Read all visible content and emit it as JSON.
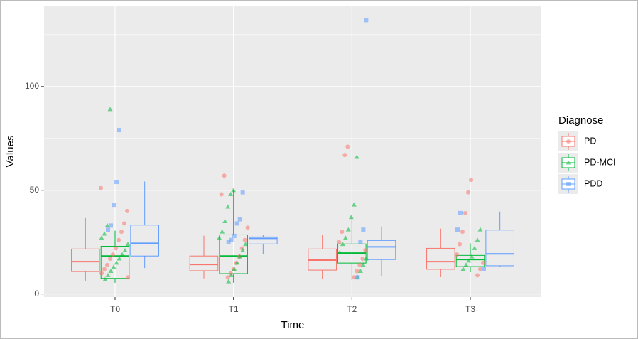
{
  "chart_data": {
    "type": "boxplot",
    "x_label": "Time",
    "y_label": "Values",
    "legend_title": "Diagnose",
    "categories": [
      "T0",
      "T1",
      "T2",
      "T3"
    ],
    "ylim": [
      -1.5,
      139
    ],
    "yticks": [
      0,
      50,
      100
    ],
    "minor_yticks": [
      25,
      75,
      125
    ],
    "grid": true,
    "legend": "right",
    "series": [
      {
        "name": "PD",
        "color": "#F8766D",
        "shape": "circle",
        "boxes": [
          {
            "whisker_low": 6.4,
            "q1": 10.8,
            "median": 15.6,
            "q3": 21.7,
            "whisker_high": 36.6
          },
          {
            "whisker_low": 7.5,
            "q1": 11.2,
            "median": 14.2,
            "q3": 18.3,
            "whisker_high": 28.1
          },
          {
            "whisker_low": 7.1,
            "q1": 11.5,
            "median": 16.3,
            "q3": 21.7,
            "whisker_high": 28.5
          },
          {
            "whisker_low": 8.1,
            "q1": 11.9,
            "median": 15.6,
            "q3": 22,
            "whisker_high": 31.5
          }
        ],
        "points": [
          [
            51,
            40,
            34,
            30,
            26,
            22,
            19,
            17,
            14,
            12,
            10,
            8
          ],
          [
            57,
            48,
            32,
            26,
            22,
            18,
            15,
            12,
            10,
            8
          ],
          [
            71,
            67,
            30,
            25,
            21,
            17,
            14,
            11,
            8
          ],
          [
            55,
            49,
            39,
            30,
            24,
            19,
            15,
            12,
            9
          ]
        ]
      },
      {
        "name": "PD-MCI",
        "color": "#00BA38",
        "shape": "triangle",
        "boxes": [
          {
            "whisker_low": 5.4,
            "q1": 7.5,
            "median": 18.3,
            "q3": 23,
            "whisker_high": 30.5
          },
          {
            "whisker_low": 5.4,
            "q1": 9.8,
            "median": 18.3,
            "q3": 28.5,
            "whisker_high": 50.2
          },
          {
            "whisker_low": 6.8,
            "q1": 14.9,
            "median": 19.7,
            "q3": 24.1,
            "whisker_high": 37.3
          },
          {
            "whisker_low": 10.5,
            "q1": 13.2,
            "median": 16.6,
            "q3": 18.6,
            "whisker_high": 24.4
          }
        ],
        "points": [
          [
            89,
            33,
            29,
            27,
            24,
            21,
            19,
            17,
            15,
            13,
            11,
            9,
            7
          ],
          [
            50,
            48,
            42,
            35,
            30,
            27,
            24,
            21,
            18,
            15,
            12,
            9,
            6
          ],
          [
            66,
            43,
            37,
            31,
            27,
            24,
            20,
            17,
            14,
            11,
            8
          ],
          [
            31,
            26,
            22,
            18,
            16,
            14,
            12
          ]
        ]
      },
      {
        "name": "PDD",
        "color": "#619CFF",
        "shape": "square",
        "boxes": [
          {
            "whisker_low": 12.5,
            "q1": 18.3,
            "median": 24.4,
            "q3": 33.2,
            "whisker_high": 54.2
          },
          {
            "whisker_low": 19.3,
            "q1": 24.1,
            "median": 26.8,
            "q3": 27.5,
            "whisker_high": 28.5
          },
          {
            "whisker_low": 8.5,
            "q1": 16.6,
            "median": 22.7,
            "q3": 25.8,
            "whisker_high": 32.5
          },
          {
            "whisker_low": 12.9,
            "q1": 13.6,
            "median": 19.3,
            "q3": 30.8,
            "whisker_high": 39.7
          }
        ],
        "points": [
          [
            79,
            54,
            43,
            33,
            31
          ],
          [
            49,
            36,
            34,
            28,
            26,
            25
          ],
          [
            132,
            31,
            25,
            8
          ],
          [
            39,
            31,
            12
          ]
        ]
      }
    ]
  }
}
